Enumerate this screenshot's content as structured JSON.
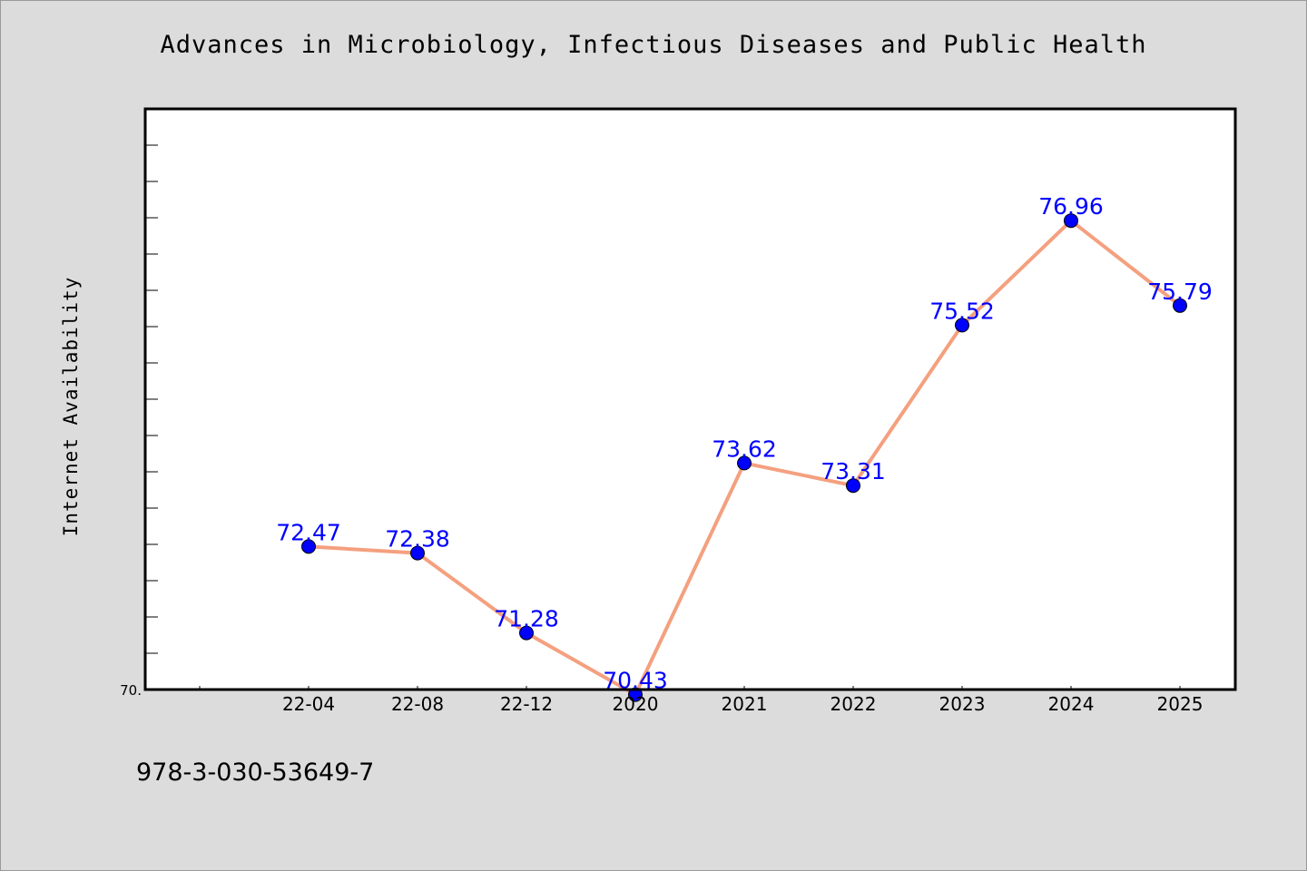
{
  "chart_data": {
    "type": "line",
    "title": "Advances in Microbiology, Infectious Diseases and Public Health",
    "xlabel": "",
    "ylabel": "Internet Availability",
    "categories": [
      "22-04",
      "22-08",
      "22-12",
      "2020",
      "2021",
      "2022",
      "2023",
      "2024",
      "2025"
    ],
    "series": [
      {
        "values": [
          72.47,
          72.38,
          71.28,
          70.43,
          73.62,
          73.31,
          75.52,
          76.96,
          75.79
        ],
        "labels": [
          "72.47",
          "72.38",
          "71.28",
          "70.43",
          "73.62",
          "73.31",
          "75.52",
          "76.96",
          "75.79"
        ]
      }
    ],
    "ylim": [
      70.5,
      78.5
    ],
    "y_min_tick_label": "70.",
    "grid": false,
    "legend": "none",
    "colors": {
      "line": "#f4a07f",
      "marker": "#0000ff",
      "data_label": "#0000ff",
      "background": "#dcdcdc",
      "plot_background": "#ffffff"
    }
  },
  "footer_text": "978-3-030-53649-7"
}
